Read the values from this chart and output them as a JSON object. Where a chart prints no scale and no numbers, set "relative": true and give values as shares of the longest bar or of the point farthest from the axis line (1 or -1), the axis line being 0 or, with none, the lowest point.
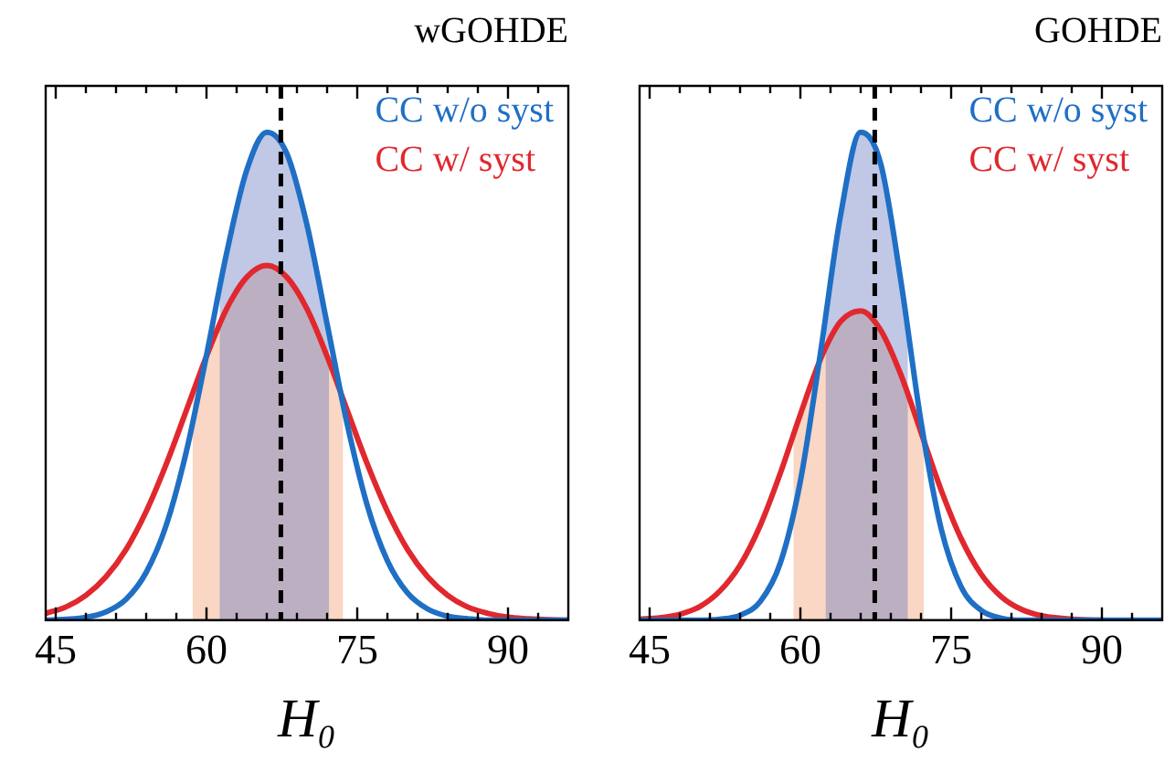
{
  "chart_data": [
    {
      "type": "line",
      "title": "wGOHDE",
      "xlabel": "H₀",
      "relative": true,
      "xlim": [
        44,
        96
      ],
      "xticks": [
        45,
        {
          "value": 48,
          "label": null
        },
        {
          "value": 51,
          "label": null
        },
        {
          "value": 54,
          "label": null
        },
        {
          "value": 57,
          "label": null
        },
        60,
        {
          "value": 63,
          "label": null
        },
        {
          "value": 66,
          "label": null
        },
        {
          "value": 69,
          "label": null
        },
        {
          "value": 72,
          "label": null
        },
        75,
        {
          "value": 78,
          "label": null
        },
        {
          "value": 81,
          "label": null
        },
        {
          "value": 84,
          "label": null
        },
        {
          "value": 87,
          "label": null
        },
        90,
        {
          "value": 93,
          "label": null
        }
      ],
      "tick_labels": "x",
      "grid": false,
      "legend": "top right",
      "marker": "none",
      "line_style": "solid",
      "x": [
        44,
        46,
        48,
        50,
        52,
        54,
        56,
        58,
        60,
        62,
        64,
        66,
        68,
        70,
        72,
        74,
        76,
        78,
        80,
        82,
        84,
        86,
        88,
        90,
        92,
        94,
        96
      ],
      "series": [
        {
          "name": "CC w/o syst",
          "color": "#1f6fc5",
          "values": [
            0,
            0.002,
            0.006,
            0.017,
            0.043,
            0.098,
            0.195,
            0.346,
            0.543,
            0.752,
            0.922,
            1,
            0.956,
            0.81,
            0.607,
            0.402,
            0.235,
            0.122,
            0.056,
            0.023,
            0.008,
            0.003,
            0,
            0,
            0,
            0,
            0
          ]
        },
        {
          "name": "CC w/ syst",
          "color": "#e0282e",
          "values": [
            0.014,
            0.027,
            0.051,
            0.089,
            0.145,
            0.223,
            0.32,
            0.43,
            0.541,
            0.638,
            0.703,
            0.727,
            0.703,
            0.638,
            0.541,
            0.43,
            0.32,
            0.223,
            0.145,
            0.089,
            0.051,
            0.027,
            0.014,
            0.006,
            0.003,
            0.001,
            0
          ]
        },
        {
          "type": "area",
          "color": "#f09664",
          "x": [
            58.6,
            60,
            62,
            64,
            66,
            68,
            70,
            72,
            73.6
          ],
          "values": [
            0.464,
            0.541,
            0.638,
            0.703,
            0.727,
            0.703,
            0.638,
            0.541,
            0.452
          ]
        },
        {
          "type": "area",
          "color": "#5a6ebe",
          "x": [
            61.3,
            62,
            64,
            66,
            68,
            70,
            72,
            72.2
          ],
          "values": [
            0.681,
            0.752,
            0.922,
            1,
            0.956,
            0.81,
            0.607,
            0.585
          ]
        }
      ],
      "ref_lines": [
        {
          "axis": "x",
          "value": 67.4,
          "color": "#000000",
          "line_style": "dashed"
        }
      ]
    },
    {
      "type": "line",
      "title": "GOHDE",
      "xlabel": "H₀",
      "relative": true,
      "xlim": [
        44,
        96
      ],
      "xticks": [
        45,
        {
          "value": 48,
          "label": null
        },
        {
          "value": 51,
          "label": null
        },
        {
          "value": 54,
          "label": null
        },
        {
          "value": 57,
          "label": null
        },
        60,
        {
          "value": 63,
          "label": null
        },
        {
          "value": 66,
          "label": null
        },
        {
          "value": 69,
          "label": null
        },
        {
          "value": 72,
          "label": null
        },
        75,
        {
          "value": 78,
          "label": null
        },
        {
          "value": 81,
          "label": null
        },
        {
          "value": 84,
          "label": null
        },
        {
          "value": 87,
          "label": null
        },
        90,
        {
          "value": 93,
          "label": null
        }
      ],
      "tick_labels": "x",
      "grid": false,
      "legend": "top right",
      "marker": "none",
      "line_style": "solid",
      "x": [
        44,
        46,
        48,
        50,
        52,
        54,
        56,
        58,
        60,
        62,
        64,
        66,
        68,
        70,
        72,
        74,
        76,
        78,
        80,
        82,
        84,
        86,
        88,
        90,
        92,
        94,
        96
      ],
      "series": [
        {
          "name": "CC w/o syst",
          "color": "#1f6fc5",
          "values": [
            0,
            0,
            0,
            0,
            0.002,
            0.01,
            0.038,
            0.117,
            0.285,
            0.548,
            0.83,
            1,
            0.935,
            0.695,
            0.407,
            0.188,
            0.068,
            0.02,
            0.004,
            0,
            0,
            0,
            0,
            0,
            0,
            0,
            0
          ]
        },
        {
          "name": "CC w/ syst",
          "color": "#e0282e",
          "values": [
            0.002,
            0.005,
            0.012,
            0.028,
            0.06,
            0.113,
            0.194,
            0.301,
            0.422,
            0.535,
            0.612,
            0.634,
            0.594,
            0.503,
            0.385,
            0.267,
            0.167,
            0.094,
            0.048,
            0.022,
            0.009,
            0.004,
            0.001,
            0,
            null,
            null,
            null
          ]
        },
        {
          "type": "area",
          "color": "#f09664",
          "x": [
            59.3,
            60,
            62,
            64,
            66,
            68,
            70,
            72,
            72.3
          ],
          "values": [
            0.379,
            0.422,
            0.535,
            0.612,
            0.634,
            0.594,
            0.503,
            0.385,
            0.367
          ]
        },
        {
          "type": "area",
          "color": "#5a6ebe",
          "x": [
            62.5,
            64,
            66,
            68,
            70,
            70.7
          ],
          "values": [
            0.621,
            0.83,
            1,
            0.935,
            0.695,
            0.592
          ]
        }
      ],
      "ref_lines": [
        {
          "axis": "x",
          "value": 67.4,
          "color": "#000000",
          "line_style": "dashed"
        }
      ]
    }
  ]
}
